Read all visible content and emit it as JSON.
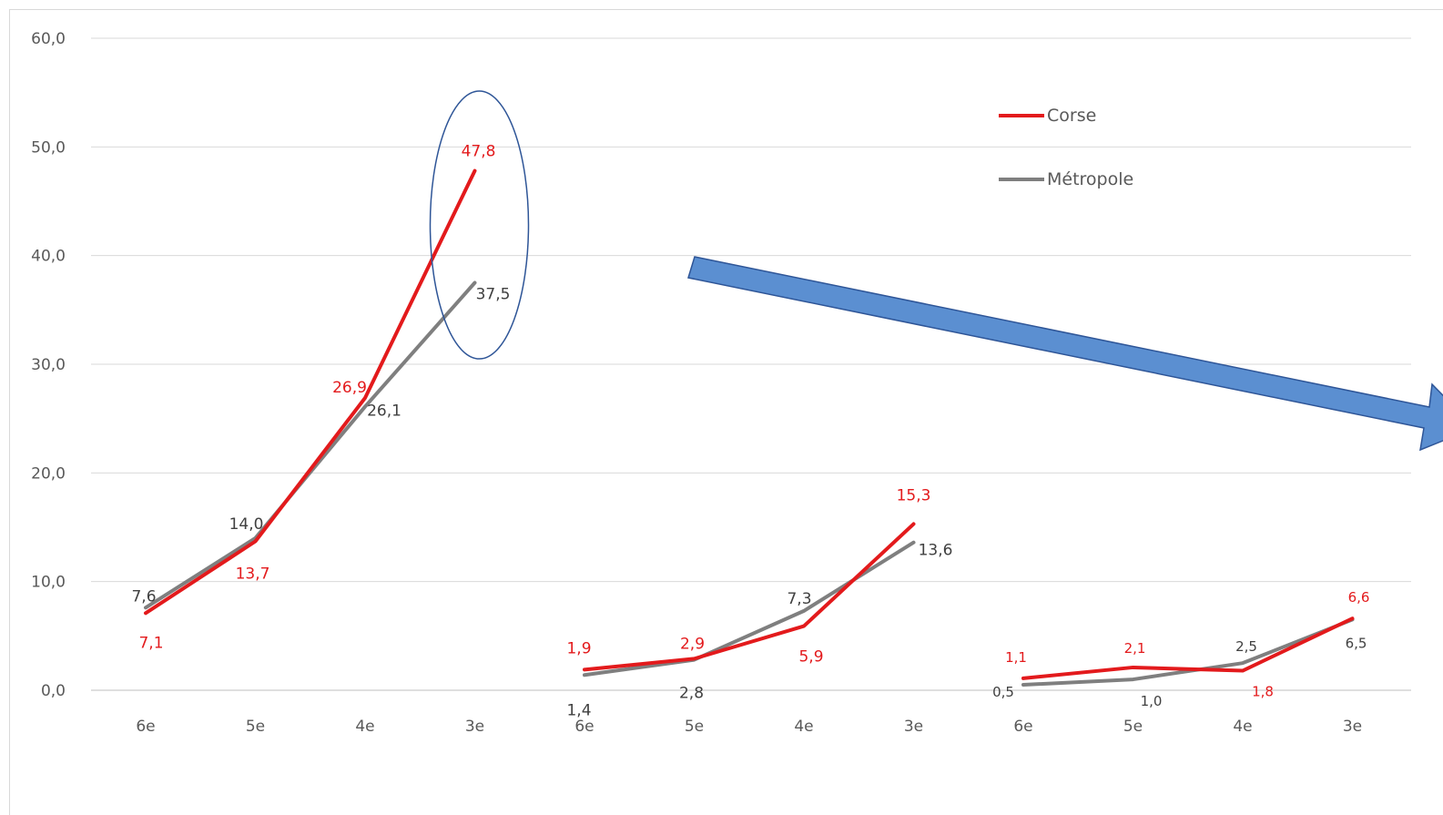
{
  "chart_data": {
    "type": "line",
    "categories": [
      "6e",
      "5e",
      "4e",
      "3e",
      "6e",
      "5e",
      "4e",
      "3e",
      "6e",
      "5e",
      "4e",
      "3e"
    ],
    "groups": [
      {
        "start": 0,
        "end": 3
      },
      {
        "start": 4,
        "end": 7
      },
      {
        "start": 8,
        "end": 11
      }
    ],
    "ylim": [
      0,
      60
    ],
    "yticks": [
      0,
      10,
      20,
      30,
      40,
      50,
      60
    ],
    "ytick_labels": [
      "0,0",
      "10,0",
      "20,0",
      "30,0",
      "40,0",
      "50,0",
      "60,0"
    ],
    "grid": true,
    "legend_position": "top-right",
    "series": [
      {
        "name": "Corse",
        "color": "#e31a1c",
        "values": [
          7.1,
          13.7,
          26.9,
          47.8,
          1.9,
          2.9,
          5.9,
          15.3,
          1.1,
          2.1,
          1.8,
          6.6
        ],
        "labels": [
          "7,1",
          "13,7",
          "26,9",
          "47,8",
          "1,9",
          "2,9",
          "5,9",
          "15,3",
          "1,1",
          "2,1",
          "1,8",
          "6,6"
        ]
      },
      {
        "name": "Métropole",
        "color": "#7f7f7f",
        "values": [
          7.6,
          14.0,
          26.1,
          37.5,
          1.4,
          2.8,
          7.3,
          13.6,
          0.5,
          1.0,
          2.5,
          6.5
        ],
        "labels": [
          "7,6",
          "14,0",
          "26,1",
          "37,5",
          "1,4",
          "2,8",
          "7,3",
          "13,6",
          "0,5",
          "1,0",
          "2,5",
          "6,5"
        ]
      }
    ],
    "annotations": {
      "highlight_category_index": 3,
      "arrow_color": "#5b8fd1",
      "ellipse_color": "#2e5597"
    }
  }
}
